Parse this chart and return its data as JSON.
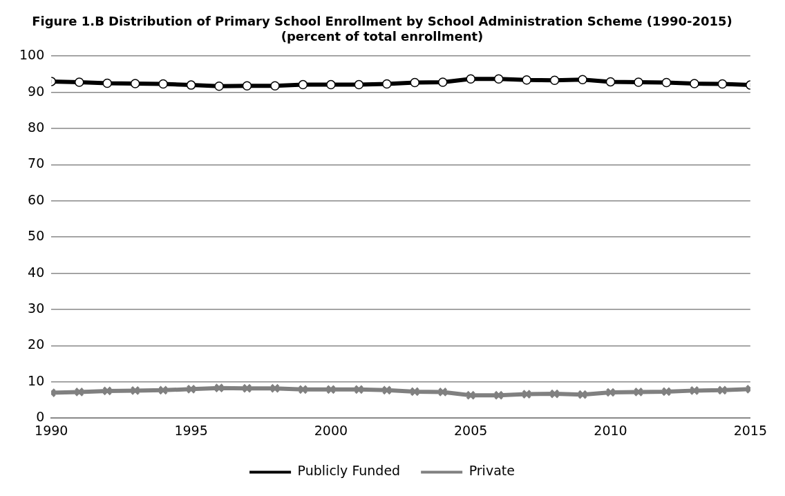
{
  "chart_data": {
    "type": "line",
    "title": "Figure 1.B Distribution of Primary School Enrollment by School Administration Scheme (1990-2015)",
    "subtitle": "(percent of total enrollment)",
    "x": [
      1990,
      1991,
      1992,
      1993,
      1994,
      1995,
      1996,
      1997,
      1998,
      1999,
      2000,
      2001,
      2002,
      2003,
      2004,
      2005,
      2006,
      2007,
      2008,
      2009,
      2010,
      2011,
      2012,
      2013,
      2014,
      2015
    ],
    "series": [
      {
        "name": "Publicly Funded",
        "color": "#000000",
        "marker": "circle",
        "values": [
          93.0,
          92.8,
          92.5,
          92.4,
          92.3,
          92.0,
          91.7,
          91.8,
          91.8,
          92.1,
          92.1,
          92.1,
          92.3,
          92.7,
          92.8,
          93.7,
          93.7,
          93.4,
          93.3,
          93.5,
          92.9,
          92.8,
          92.7,
          92.4,
          92.3,
          92.0
        ]
      },
      {
        "name": "Private",
        "color": "#808080",
        "marker": "cross",
        "values": [
          7.0,
          7.2,
          7.5,
          7.6,
          7.7,
          8.0,
          8.3,
          8.2,
          8.2,
          7.9,
          7.9,
          7.9,
          7.7,
          7.3,
          7.2,
          6.3,
          6.3,
          6.6,
          6.7,
          6.5,
          7.1,
          7.2,
          7.3,
          7.6,
          7.7,
          8.0
        ]
      }
    ],
    "xlim": [
      1990,
      2015
    ],
    "xticks": [
      1990,
      1995,
      2000,
      2005,
      2010,
      2015
    ],
    "ylim": [
      0,
      100
    ],
    "yticks": [
      0,
      10,
      20,
      30,
      40,
      50,
      60,
      70,
      80,
      90,
      100
    ],
    "grid": "y",
    "legend": "bottom",
    "line_style": "solid"
  }
}
